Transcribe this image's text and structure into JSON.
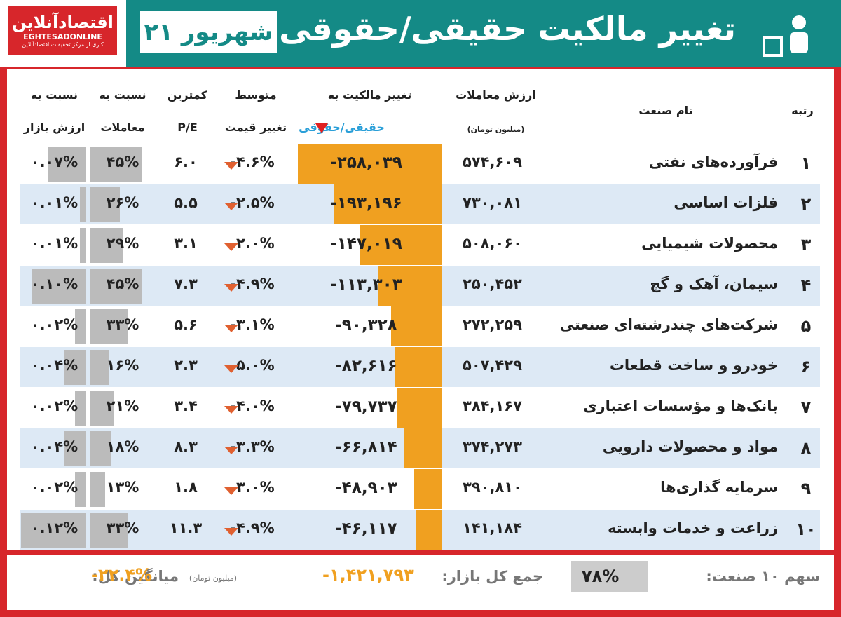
{
  "header": {
    "logo": {
      "name": "اقتصادآنلاین",
      "latin": "EGHTESADONLINE",
      "tagline": "کاری از مرکز تحقیقات اقتصادآنلاین"
    },
    "date": "۲۱ شهریور",
    "title": "تغییر مالکیت حقیقی/حقوقی"
  },
  "table": {
    "columns": {
      "rank": "رتبه",
      "industry": "نام صنعت",
      "trade_value": [
        "ارزش معاملات",
        "(میلیون تومان)"
      ],
      "ownership_change": [
        "تغییر مالکیت به",
        "حقیقی/حقوقی"
      ],
      "avg_price_change": [
        "متوسط",
        "تغییر قیمت"
      ],
      "min_pe": [
        "کمترین",
        "P/E"
      ],
      "trade_ratio": [
        "نسبت به",
        "معاملات"
      ],
      "market_ratio": [
        "نسبت به",
        "ارزش بازار"
      ]
    },
    "rows": [
      [
        "۱",
        "فرآورده‌های نفتی",
        "۵۷۴,۶۰۹",
        "-۲۵۸,۰۳۹",
        "-۴.۶%",
        "۶.۰",
        "۴۵%",
        "۰.۰۷%"
      ],
      [
        "۲",
        "فلزات اساسی",
        "۷۳۰,۰۸۱",
        "-۱۹۳,۱۹۶",
        "-۲.۵%",
        "۵.۵",
        "۲۶%",
        "۰.۰۱%"
      ],
      [
        "۳",
        "محصولات شیمیایی",
        "۵۰۸,۰۶۰",
        "-۱۴۷,۰۱۹",
        "-۲.۰%",
        "۳.۱",
        "۲۹%",
        "۰.۰۱%"
      ],
      [
        "۴",
        "سیمان، آهک و گچ",
        "۲۵۰,۴۵۲",
        "-۱۱۳,۳۰۳",
        "-۴.۹%",
        "۷.۳",
        "۴۵%",
        "۰.۱۰%"
      ],
      [
        "۵",
        "شرکت‌های چندرشته‌ای صنعتی",
        "۲۷۲,۲۵۹",
        "-۹۰,۳۲۸",
        "-۳.۱%",
        "۵.۶",
        "۳۳%",
        "۰.۰۲%"
      ],
      [
        "۶",
        "خودرو و ساخت قطعات",
        "۵۰۷,۴۲۹",
        "-۸۲,۶۱۶",
        "-۵.۰%",
        "۲.۳",
        "۱۶%",
        "۰.۰۴%"
      ],
      [
        "۷",
        "بانک‌ها و مؤسسات اعتباری",
        "۳۸۴,۱۶۷",
        "-۷۹,۷۳۷",
        "-۴.۰%",
        "۳.۴",
        "۲۱%",
        "۰.۰۲%"
      ],
      [
        "۸",
        "مواد و محصولات دارویی",
        "۳۷۴,۲۷۳",
        "-۶۶,۸۱۴",
        "-۳.۳%",
        "۸.۳",
        "۱۸%",
        "۰.۰۴%"
      ],
      [
        "۹",
        "سرمایه گذاری‌ها",
        "۳۹۰,۸۱۰",
        "-۴۸,۹۰۳",
        "-۳.۰%",
        "۱.۸",
        "۱۳%",
        "۰.۰۲%"
      ],
      [
        "۱۰",
        "زراعت و خدمات وابسته",
        "۱۴۱,۱۸۴",
        "-۴۶,۱۱۷",
        "-۴.۹%",
        "۱۱.۳",
        "۳۳%",
        "۰.۱۲%"
      ]
    ]
  },
  "footer": {
    "share_label": "سهم ۱۰ صنعت:",
    "share_value": "۷۸%",
    "total_label": "جمع کل بازار:",
    "total_value": "-۱,۴۲۱,۷۹۳",
    "unit": "(میلیون تومان)",
    "avg_label": "میانگین کل:",
    "avg_value": "-۲۲.۴%"
  }
}
